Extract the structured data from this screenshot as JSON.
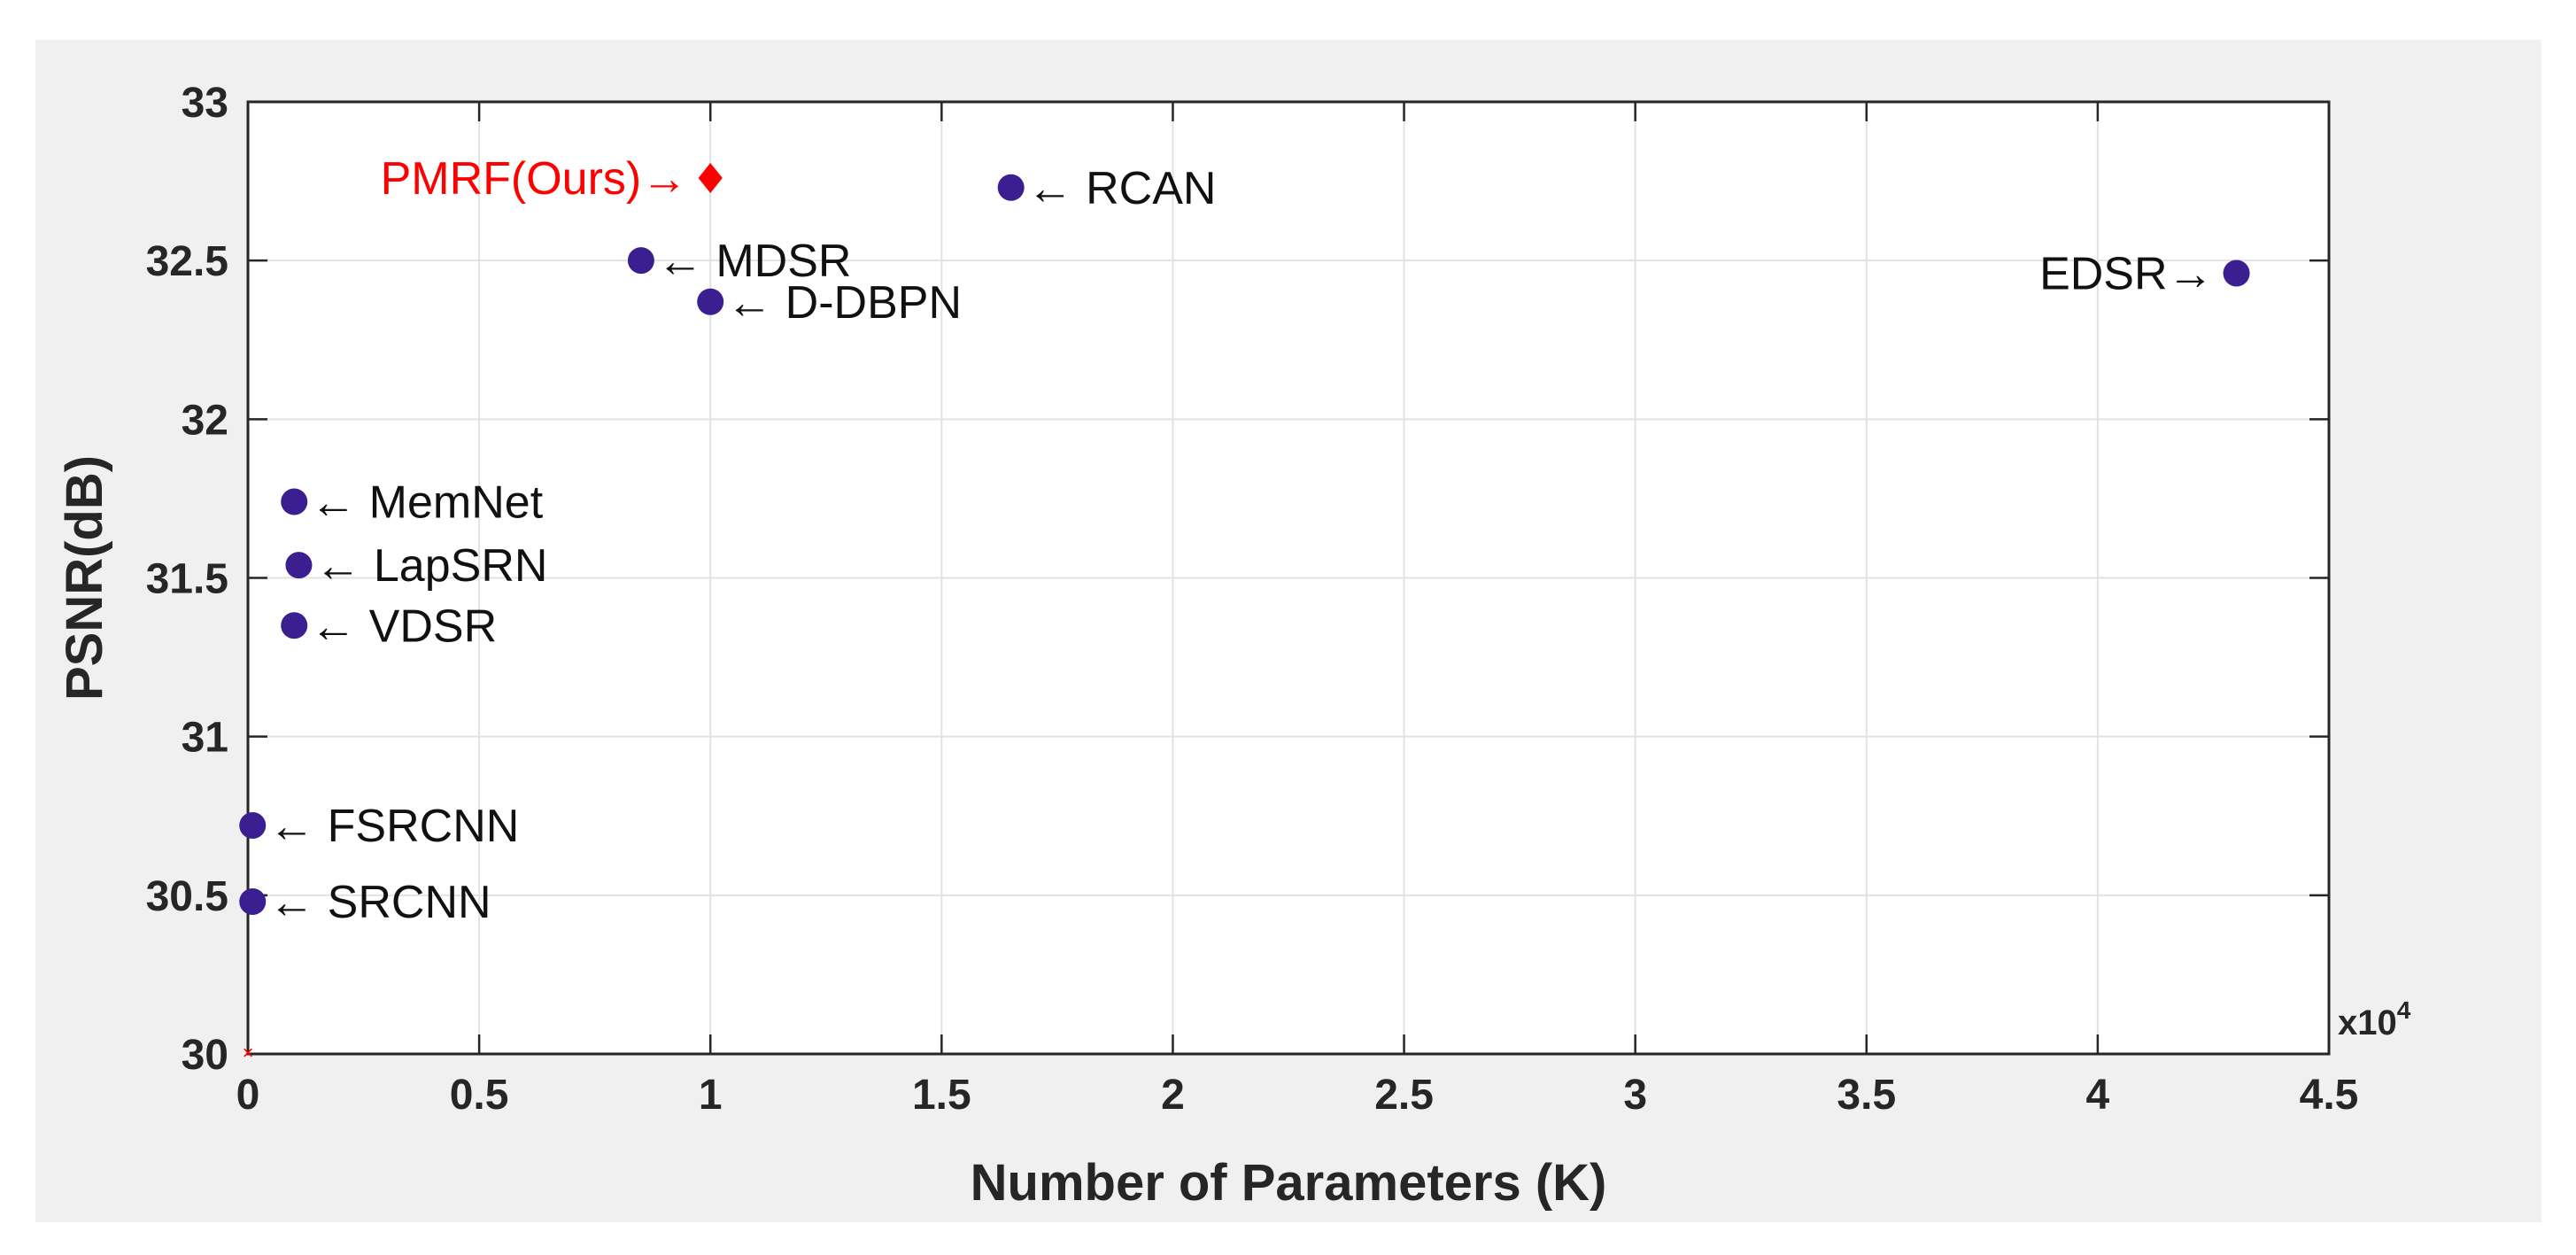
{
  "chart_data": {
    "type": "scatter",
    "title": "",
    "xlabel": "Number of Parameters (K)",
    "ylabel": "PSNR(dB)",
    "x_exponent_label": "x10",
    "x_exponent_power": "4",
    "xlim": [
      0,
      4.5
    ],
    "ylim": [
      30,
      33
    ],
    "xticks": [
      "0",
      "0.5",
      "1",
      "1.5",
      "2",
      "2.5",
      "3",
      "3.5",
      "4",
      "4.5"
    ],
    "yticks": [
      "30",
      "30.5",
      "31",
      "31.5",
      "32",
      "32.5",
      "33"
    ],
    "grid": true,
    "colors": {
      "figure_bg": "#f0f0f0",
      "axes_bg": "#ffffff",
      "marker": "#3b1e8f",
      "highlight": "#ff0000",
      "grid": "#e2e2e2",
      "axis": "#262626"
    },
    "points": [
      {
        "label": "PMRF(Ours)",
        "display": "PMRF(Ours)→",
        "x": 1.0,
        "y": 32.76,
        "marker": "diamond",
        "color": "#ff0000",
        "label_side": "left"
      },
      {
        "label": "RCAN",
        "display": "← RCAN",
        "x": 1.65,
        "y": 32.73,
        "marker": "circle",
        "color": "#3b1e8f",
        "label_side": "right"
      },
      {
        "label": "MDSR",
        "display": "← MDSR",
        "x": 0.85,
        "y": 32.5,
        "marker": "circle",
        "color": "#3b1e8f",
        "label_side": "right"
      },
      {
        "label": "D-DBPN",
        "display": "← D-DBPN",
        "x": 1.0,
        "y": 32.37,
        "marker": "circle",
        "color": "#3b1e8f",
        "label_side": "right"
      },
      {
        "label": "EDSR",
        "display": "EDSR→",
        "x": 4.3,
        "y": 32.46,
        "marker": "circle",
        "color": "#3b1e8f",
        "label_side": "left"
      },
      {
        "label": "MemNet",
        "display": "← MemNet",
        "x": 0.1,
        "y": 31.74,
        "marker": "circle",
        "color": "#3b1e8f",
        "label_side": "right"
      },
      {
        "label": "LapSRN",
        "display": "← LapSRN",
        "x": 0.11,
        "y": 31.54,
        "marker": "circle",
        "color": "#3b1e8f",
        "label_side": "right"
      },
      {
        "label": "VDSR",
        "display": "← VDSR",
        "x": 0.1,
        "y": 31.35,
        "marker": "circle",
        "color": "#3b1e8f",
        "label_side": "right"
      },
      {
        "label": "FSRCNN",
        "display": "← FSRCNN",
        "x": 0.01,
        "y": 30.72,
        "marker": "circle",
        "color": "#3b1e8f",
        "label_side": "right"
      },
      {
        "label": "SRCNN",
        "display": "← SRCNN",
        "x": 0.01,
        "y": 30.48,
        "marker": "circle",
        "color": "#3b1e8f",
        "label_side": "right"
      }
    ]
  }
}
